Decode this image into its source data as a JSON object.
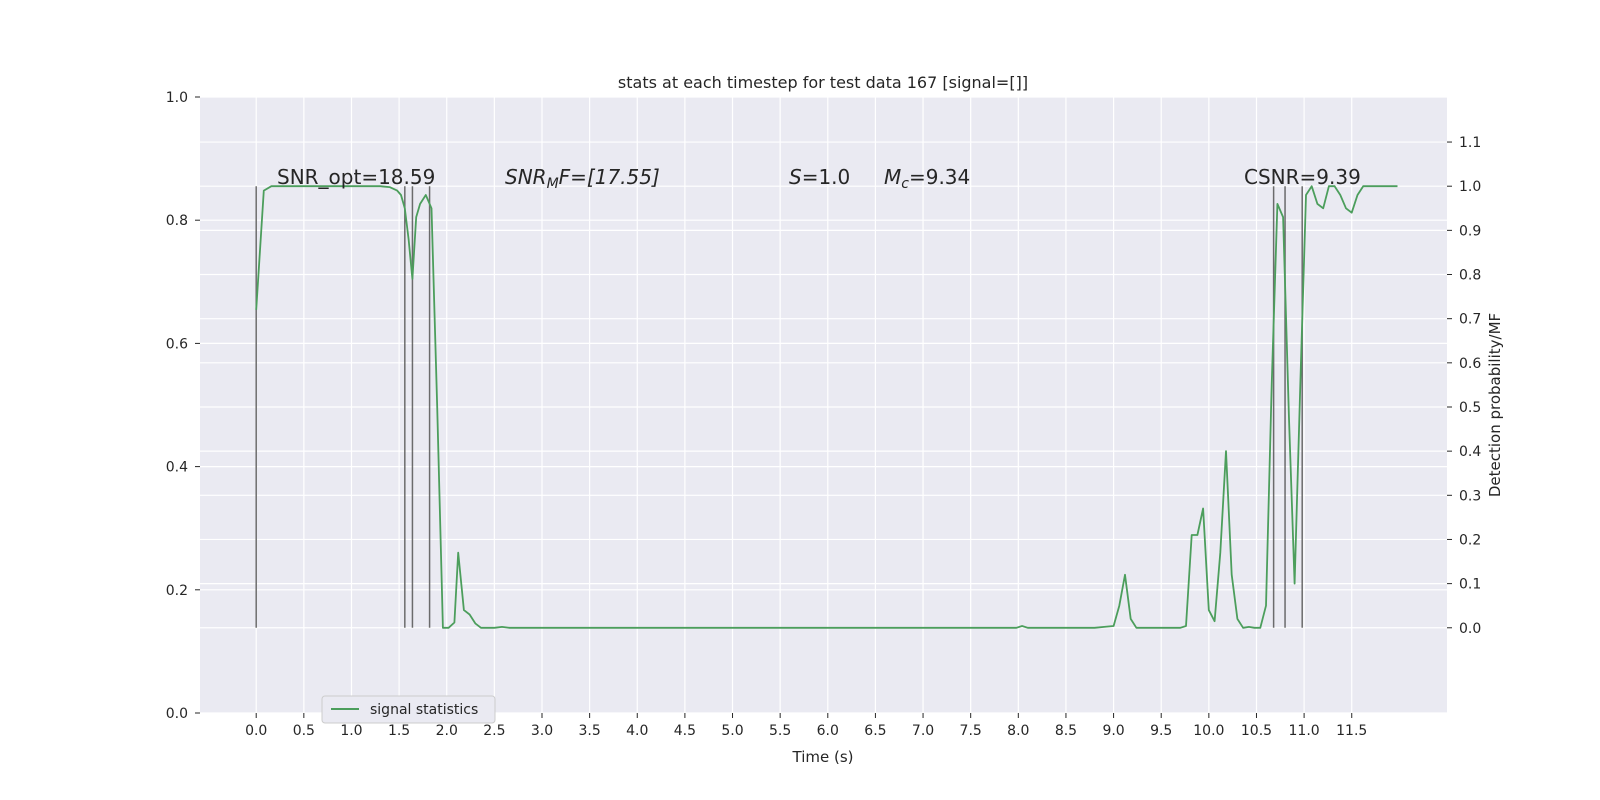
{
  "chart_data": {
    "type": "line",
    "title": "stats at each timestep for test data 167 [signal=[]]",
    "xlabel": "Time (s)",
    "ylabel": "",
    "y2label": "Detection probability/MF",
    "xlim": [
      -0.59,
      12.5
    ],
    "ylim": [
      0,
      1.0
    ],
    "y2lim": [
      -0.193,
      1.202
    ],
    "x_ticks": [
      "0.0",
      "0.5",
      "1.0",
      "1.5",
      "2.0",
      "2.5",
      "3.0",
      "3.5",
      "4.0",
      "4.5",
      "5.0",
      "5.5",
      "6.0",
      "6.5",
      "7.0",
      "7.5",
      "8.0",
      "8.5",
      "9.0",
      "9.5",
      "10.0",
      "10.5",
      "11.0",
      "11.5"
    ],
    "y_ticks": [
      "0.0",
      "0.2",
      "0.4",
      "0.6",
      "0.8",
      "1.0"
    ],
    "y2_ticks": [
      "0.0",
      "0.1",
      "0.2",
      "0.3",
      "0.4",
      "0.5",
      "0.6",
      "0.7",
      "0.8",
      "0.9",
      "1.0",
      "1.1"
    ],
    "grid": true,
    "legend_position": "lower-left",
    "annotations": {
      "snr_opt": "SNR_opt=18.59",
      "snr_mf_main": "SNR",
      "snr_mf_sub": "M",
      "snr_mf_rest": "F=[17.55]",
      "s_main": "S",
      "s_rest": "=1.0",
      "mc_main": "M",
      "mc_sub": "c",
      "mc_rest": "=9.34",
      "csnr": "CSNR=9.39"
    },
    "vertical_lines": [
      0.0,
      1.56,
      1.64,
      1.82,
      10.68,
      10.8,
      10.98
    ],
    "vertical_line_range": [
      0.0,
      1.0
    ],
    "series": [
      {
        "name": "signal statistics",
        "color": "#4c9e5c",
        "axis": "right",
        "x": [
          0.0,
          0.08,
          0.16,
          0.25,
          0.33,
          0.41,
          0.5,
          0.6,
          0.7,
          0.8,
          0.9,
          1.0,
          1.1,
          1.2,
          1.3,
          1.4,
          1.48,
          1.52,
          1.56,
          1.6,
          1.64,
          1.68,
          1.72,
          1.78,
          1.84,
          1.9,
          1.96,
          2.02,
          2.08,
          2.12,
          2.18,
          2.24,
          2.3,
          2.36,
          2.42,
          2.5,
          2.58,
          2.66,
          2.74,
          2.8,
          2.9,
          3.0,
          3.5,
          4.0,
          4.5,
          5.0,
          5.5,
          6.0,
          6.5,
          7.0,
          7.5,
          7.9,
          7.98,
          8.04,
          8.1,
          8.2,
          8.4,
          8.6,
          8.8,
          8.9,
          9.0,
          9.06,
          9.12,
          9.18,
          9.24,
          9.3,
          9.4,
          9.5,
          9.6,
          9.7,
          9.76,
          9.82,
          9.88,
          9.94,
          10.0,
          10.06,
          10.12,
          10.18,
          10.24,
          10.3,
          10.36,
          10.42,
          10.48,
          10.54,
          10.6,
          10.66,
          10.72,
          10.78,
          10.84,
          10.9,
          10.96,
          11.02,
          11.08,
          11.14,
          11.2,
          11.26,
          11.32,
          11.38,
          11.44,
          11.5,
          11.56,
          11.62,
          11.7,
          11.8,
          11.9,
          11.98
        ],
        "y": [
          0.72,
          0.99,
          1.0,
          1.0,
          1.0,
          1.0,
          1.0,
          1.0,
          1.0,
          1.0,
          1.0,
          1.0,
          1.0,
          1.0,
          1.0,
          0.998,
          0.99,
          0.98,
          0.95,
          0.88,
          0.79,
          0.93,
          0.96,
          0.98,
          0.95,
          0.5,
          0.0,
          0.0,
          0.012,
          0.17,
          0.04,
          0.03,
          0.01,
          0.0,
          0.0,
          0.0,
          0.002,
          0.0,
          0.0,
          0.0,
          0.0,
          0.0,
          0.0,
          0.0,
          0.0,
          0.0,
          0.0,
          0.0,
          0.0,
          0.0,
          0.0,
          0.0,
          0.0,
          0.004,
          0.0,
          0.0,
          0.0,
          0.0,
          0.0,
          0.002,
          0.004,
          0.05,
          0.12,
          0.02,
          0.0,
          0.0,
          0.0,
          0.0,
          0.0,
          0.0,
          0.004,
          0.21,
          0.21,
          0.27,
          0.04,
          0.015,
          0.17,
          0.4,
          0.12,
          0.02,
          0.0,
          0.002,
          0.0,
          0.0,
          0.05,
          0.55,
          0.96,
          0.93,
          0.48,
          0.1,
          0.55,
          0.98,
          1.0,
          0.96,
          0.95,
          1.0,
          1.0,
          0.98,
          0.95,
          0.94,
          0.98,
          1.0,
          1.0,
          1.0,
          1.0,
          1.0
        ]
      }
    ]
  }
}
